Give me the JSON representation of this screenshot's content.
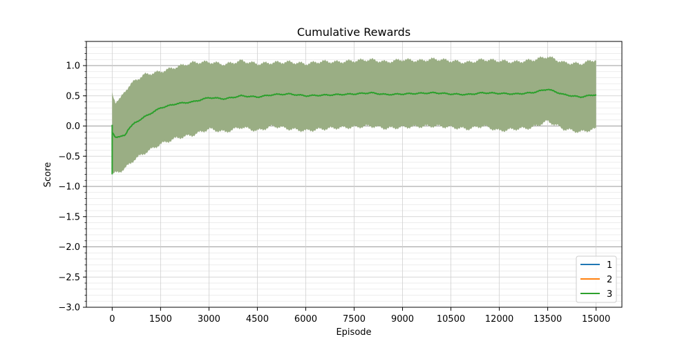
{
  "chart_data": {
    "type": "line",
    "title": "Cumulative Rewards",
    "xlabel": "Episode",
    "ylabel": "Score",
    "xlim": [
      -800,
      15800
    ],
    "ylim": [
      -3.0,
      1.4
    ],
    "x_ticks": [
      0,
      1500,
      3000,
      4500,
      6000,
      7500,
      9000,
      10500,
      12000,
      13500,
      15000
    ],
    "x_tick_labels": [
      "0",
      "1500",
      "3000",
      "4500",
      "6000",
      "7500",
      "9000",
      "10500",
      "12000",
      "13500",
      "15000"
    ],
    "y_ticks": [
      -3.0,
      -2.5,
      -2.0,
      -1.5,
      -1.0,
      -0.5,
      0.0,
      0.5,
      1.0
    ],
    "y_tick_labels": [
      "−3.0",
      "−2.5",
      "−2.0",
      "−1.5",
      "−1.0",
      "−0.5",
      "0.0",
      "0.5",
      "1.0"
    ],
    "grid": true,
    "legend_position": "lower-right",
    "band_color": "#9aae84",
    "x": [
      0,
      100,
      250,
      400,
      500,
      700,
      1000,
      1500,
      2000,
      2500,
      3000,
      3500,
      4000,
      4500,
      5000,
      5500,
      6000,
      6500,
      7000,
      7500,
      8000,
      8500,
      9000,
      9500,
      10000,
      10500,
      11000,
      11500,
      12000,
      12500,
      13000,
      13500,
      14000,
      14500,
      15000
    ],
    "series": [
      {
        "name": "1",
        "color": "#1f77b4",
        "mean": [],
        "upper": [],
        "lower": []
      },
      {
        "name": "2",
        "color": "#ff7f0e",
        "mean": [],
        "upper": [],
        "lower": []
      },
      {
        "name": "3",
        "color": "#2ca02c",
        "mean": [
          -0.1,
          -0.18,
          -0.18,
          -0.15,
          -0.05,
          0.05,
          0.15,
          0.3,
          0.37,
          0.4,
          0.47,
          0.45,
          0.5,
          0.48,
          0.52,
          0.53,
          0.5,
          0.51,
          0.52,
          0.53,
          0.55,
          0.52,
          0.53,
          0.54,
          0.55,
          0.53,
          0.52,
          0.55,
          0.54,
          0.53,
          0.55,
          0.61,
          0.52,
          0.48,
          0.52
        ],
        "upper": [
          0.55,
          0.4,
          0.45,
          0.58,
          0.65,
          0.75,
          0.85,
          0.9,
          0.98,
          1.05,
          1.06,
          1.02,
          1.08,
          1.03,
          1.05,
          1.06,
          1.03,
          1.07,
          1.06,
          1.08,
          1.1,
          1.06,
          1.1,
          1.08,
          1.11,
          1.08,
          1.05,
          1.1,
          1.08,
          1.06,
          1.09,
          1.15,
          1.05,
          1.03,
          1.1
        ],
        "lower": [
          -0.8,
          -0.78,
          -0.75,
          -0.7,
          -0.65,
          -0.55,
          -0.45,
          -0.3,
          -0.2,
          -0.15,
          -0.05,
          -0.1,
          -0.02,
          -0.08,
          0.0,
          -0.05,
          -0.08,
          -0.05,
          -0.03,
          -0.02,
          0.0,
          -0.04,
          -0.02,
          -0.01,
          0.0,
          -0.02,
          -0.05,
          0.0,
          -0.08,
          -0.05,
          -0.03,
          0.08,
          -0.05,
          -0.1,
          -0.05
        ]
      }
    ]
  }
}
